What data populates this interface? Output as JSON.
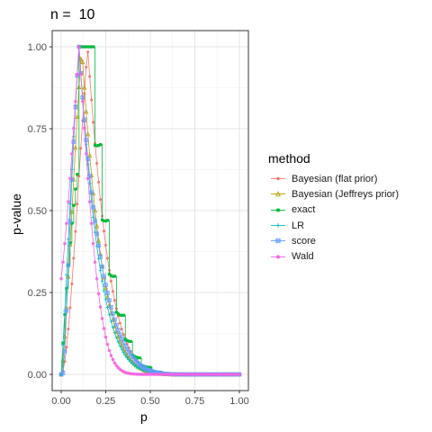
{
  "title": "n =  10",
  "chart_data": {
    "type": "line",
    "xlabel": "p",
    "ylabel": "p-value",
    "xlim": [
      0,
      1
    ],
    "ylim": [
      0,
      1
    ],
    "x_ticks": [
      "0.00",
      "0.25",
      "0.50",
      "0.75",
      "1.00"
    ],
    "y_ticks": [
      "0.00",
      "0.25",
      "0.50",
      "0.75",
      "1.00"
    ],
    "grid": true,
    "legend_title": "method",
    "legend_position": "right",
    "series": [
      {
        "name": "Bayesian (flat prior)",
        "color": "#F8766D",
        "marker": "dot"
      },
      {
        "name": "Bayesian (Jeffreys prior)",
        "color": "#B79F00",
        "marker": "triangle"
      },
      {
        "name": "exact",
        "color": "#00BA38",
        "marker": "square"
      },
      {
        "name": "LR",
        "color": "#00BFC4",
        "marker": "plus"
      },
      {
        "name": "score",
        "color": "#619CFF",
        "marker": "square-x"
      },
      {
        "name": "Wald",
        "color": "#F564E3",
        "marker": "star"
      }
    ]
  }
}
